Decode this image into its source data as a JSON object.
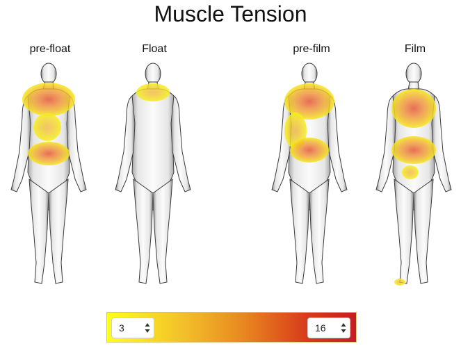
{
  "title": "Muscle Tension",
  "panels": [
    {
      "label": "pre-float"
    },
    {
      "label": "Float"
    },
    {
      "label": "pre-film"
    },
    {
      "label": "Film"
    }
  ],
  "scale": {
    "min_value": "3",
    "max_value": "16",
    "colors": {
      "low": "#ffff1a",
      "mid": "#e8871f",
      "high": "#c51c23"
    }
  },
  "icons": [
    "up-down-arrows-icon"
  ]
}
